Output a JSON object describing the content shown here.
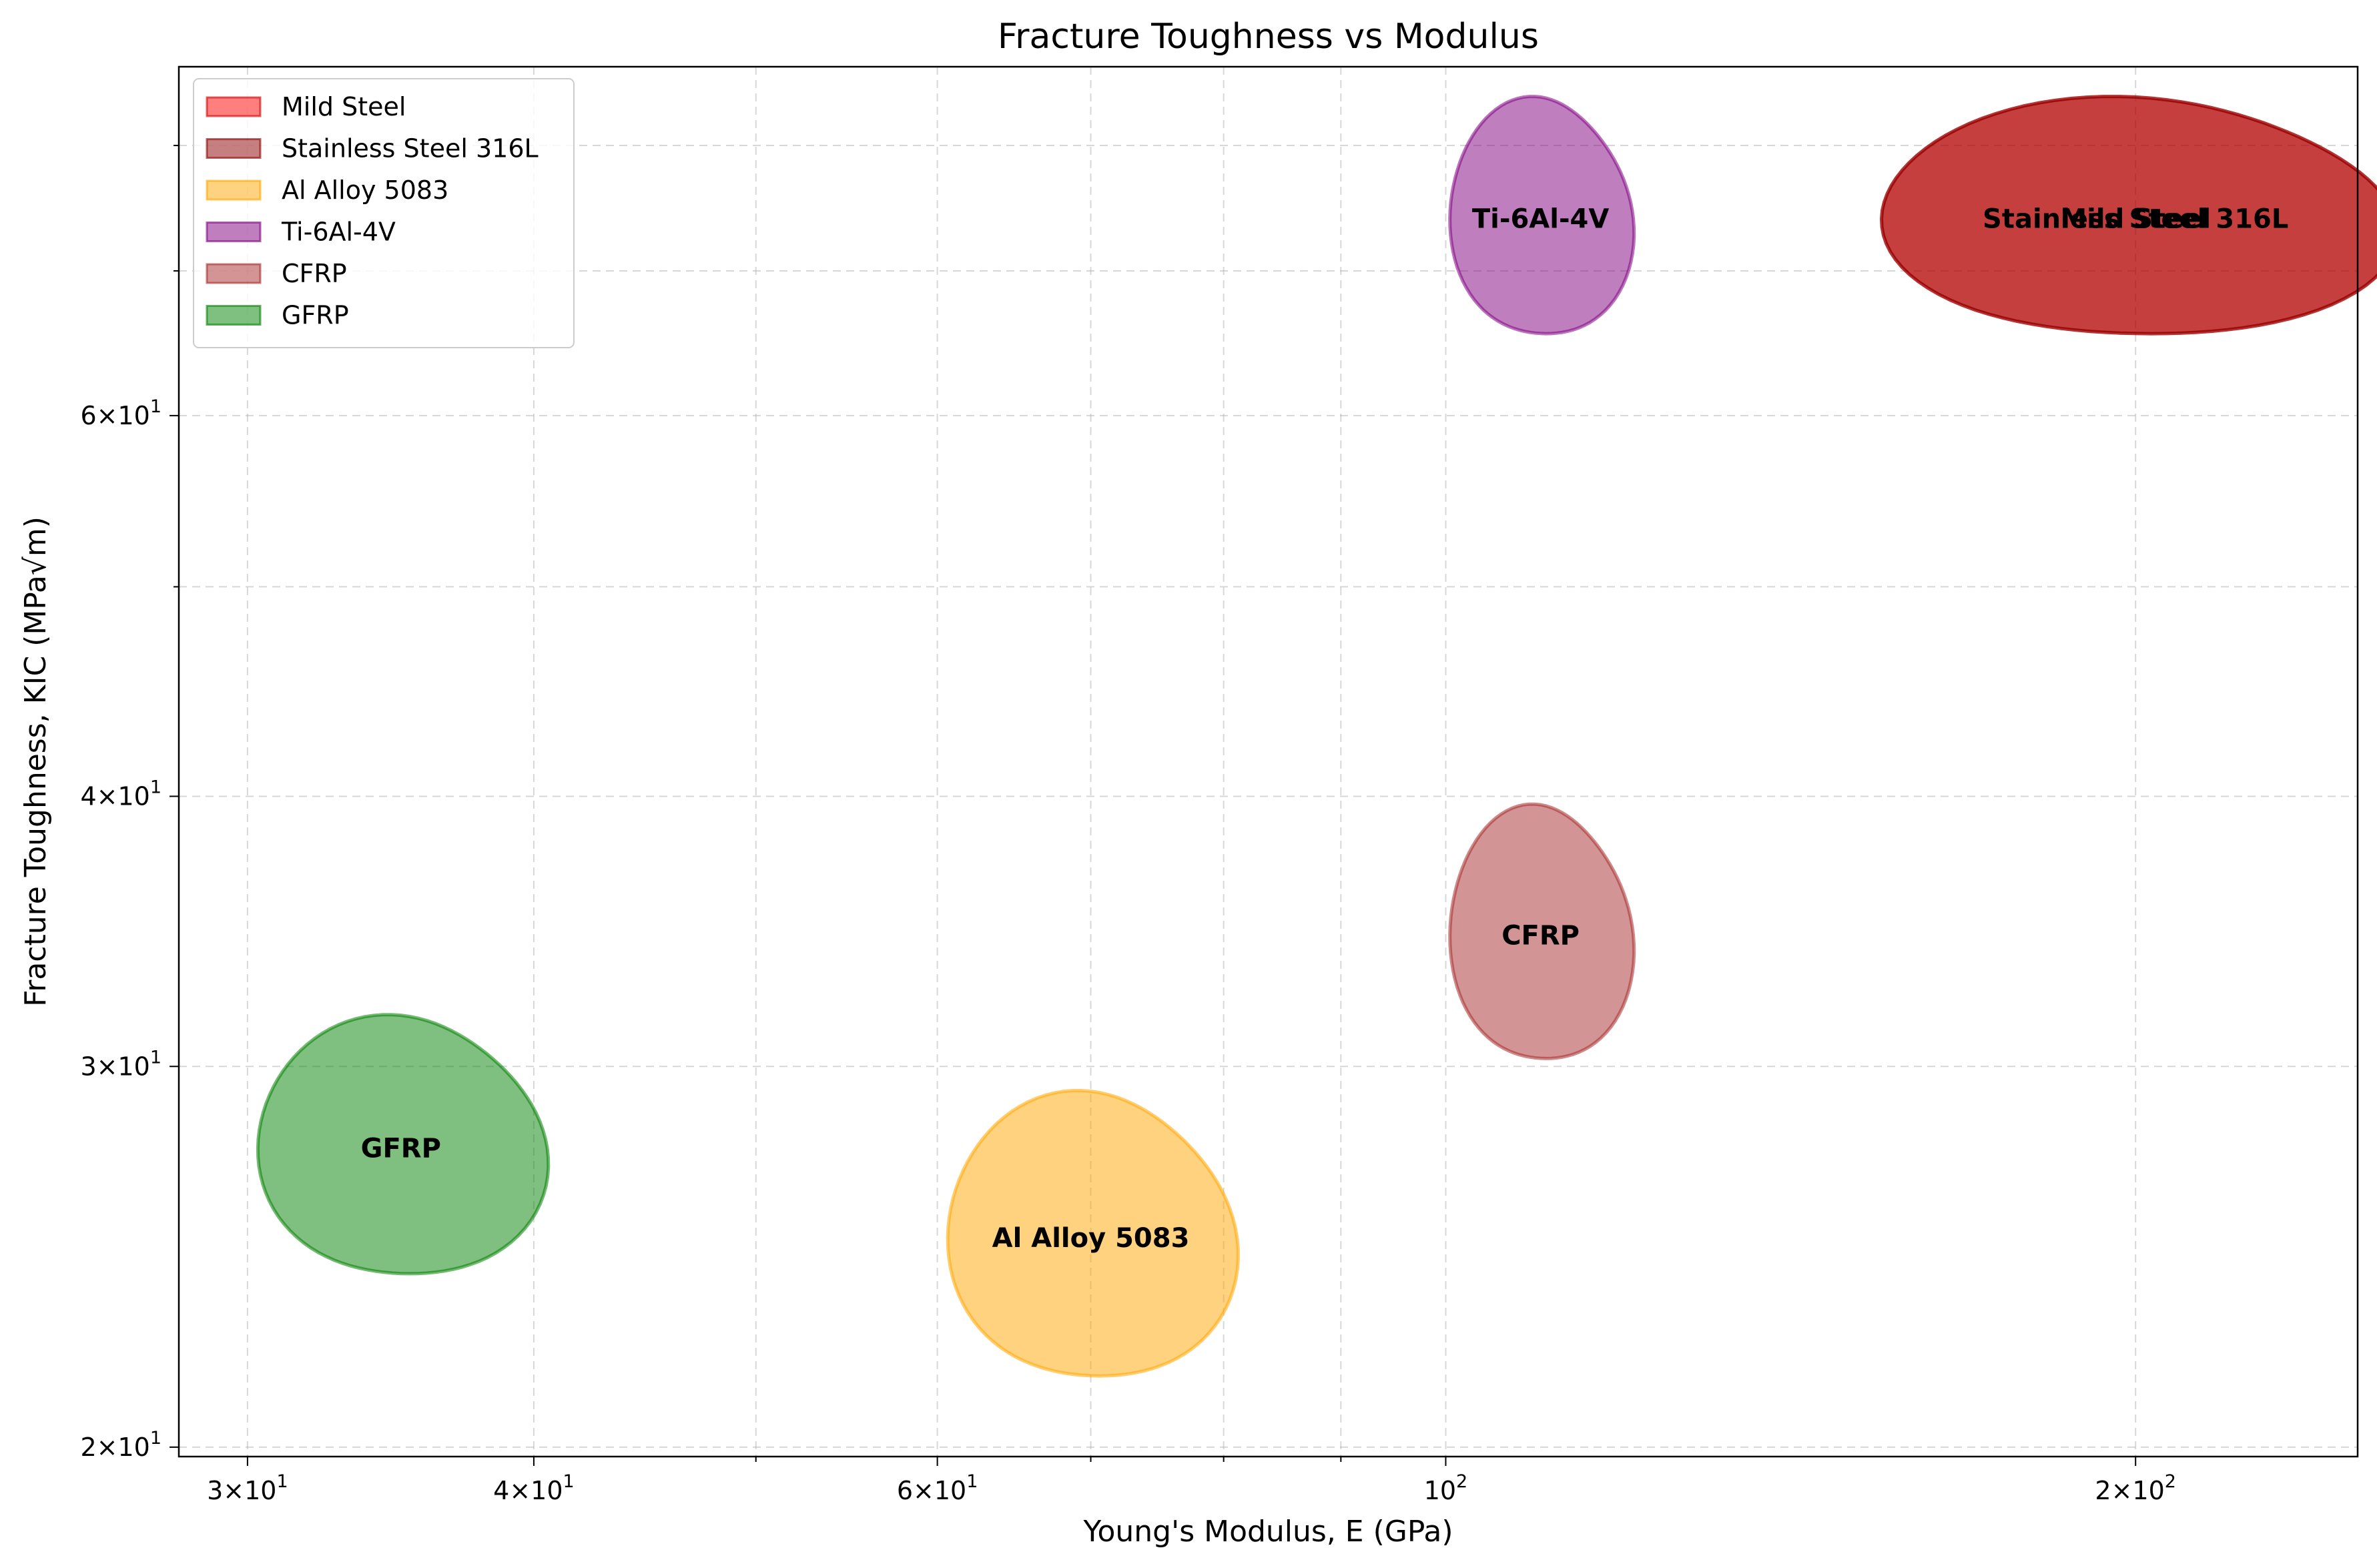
{
  "chart_data": {
    "type": "scatter",
    "title": "Fracture Toughness vs Modulus",
    "xlabel": "Young's Modulus, E (GPa)",
    "ylabel": "Fracture Toughness, KIC (MPa√m)",
    "xscale": "log",
    "yscale": "log",
    "xlim": [
      28,
      250
    ],
    "ylim": [
      19.8,
      87
    ],
    "grid": true,
    "legend_position": "upper left",
    "x_ticks": [
      {
        "value": 30,
        "base": "3×10",
        "exp": "1"
      },
      {
        "value": 40,
        "base": "4×10",
        "exp": "1"
      },
      {
        "value": 60,
        "base": "6×10",
        "exp": "1"
      },
      {
        "value": 100,
        "base": "10",
        "exp": "2"
      },
      {
        "value": 200,
        "base": "2×10",
        "exp": "2"
      }
    ],
    "x_minor_ticks": [
      50,
      70,
      80,
      90
    ],
    "y_ticks": [
      {
        "value": 20,
        "base": "2×10",
        "exp": "1"
      },
      {
        "value": 30,
        "base": "3×10",
        "exp": "1"
      },
      {
        "value": 40,
        "base": "4×10",
        "exp": "1"
      },
      {
        "value": 60,
        "base": "6×10",
        "exp": "1"
      }
    ],
    "y_minor_ticks": [
      50,
      70,
      80
    ],
    "series": [
      {
        "name": "Mild Steel",
        "x": [
          150,
          250
        ],
        "y": [
          65,
          85
        ],
        "x_center": 200,
        "y_center": 74,
        "color": "#ff0000",
        "edge": "#cc0000"
      },
      {
        "name": "Stainless Steel 316L",
        "x": [
          150,
          250
        ],
        "y": [
          65,
          85
        ],
        "x_center": 200,
        "y_center": 74,
        "color": "#8b0000",
        "edge": "#8b0000"
      },
      {
        "name": "Al Alloy 5083",
        "x": [
          60,
          80
        ],
        "y": [
          21,
          29
        ],
        "x_center": 70,
        "y_center": 25,
        "color": "#ffa500",
        "edge": "#ffa500"
      },
      {
        "name": "Ti-6Al-4V",
        "x": [
          100,
          120
        ],
        "y": [
          65,
          85
        ],
        "x_center": 110,
        "y_center": 74,
        "color": "#800080",
        "edge": "#800080"
      },
      {
        "name": "CFRP",
        "x": [
          100,
          120
        ],
        "y": [
          30,
          40
        ],
        "x_center": 110,
        "y_center": 34.5,
        "color": "#a52a2a",
        "edge": "#a52a2a"
      },
      {
        "name": "GFRP",
        "x": [
          30,
          40
        ],
        "y": [
          23.5,
          31.5
        ],
        "x_center": 35,
        "y_center": 27.5,
        "color": "#008000",
        "edge": "#008000"
      }
    ]
  }
}
